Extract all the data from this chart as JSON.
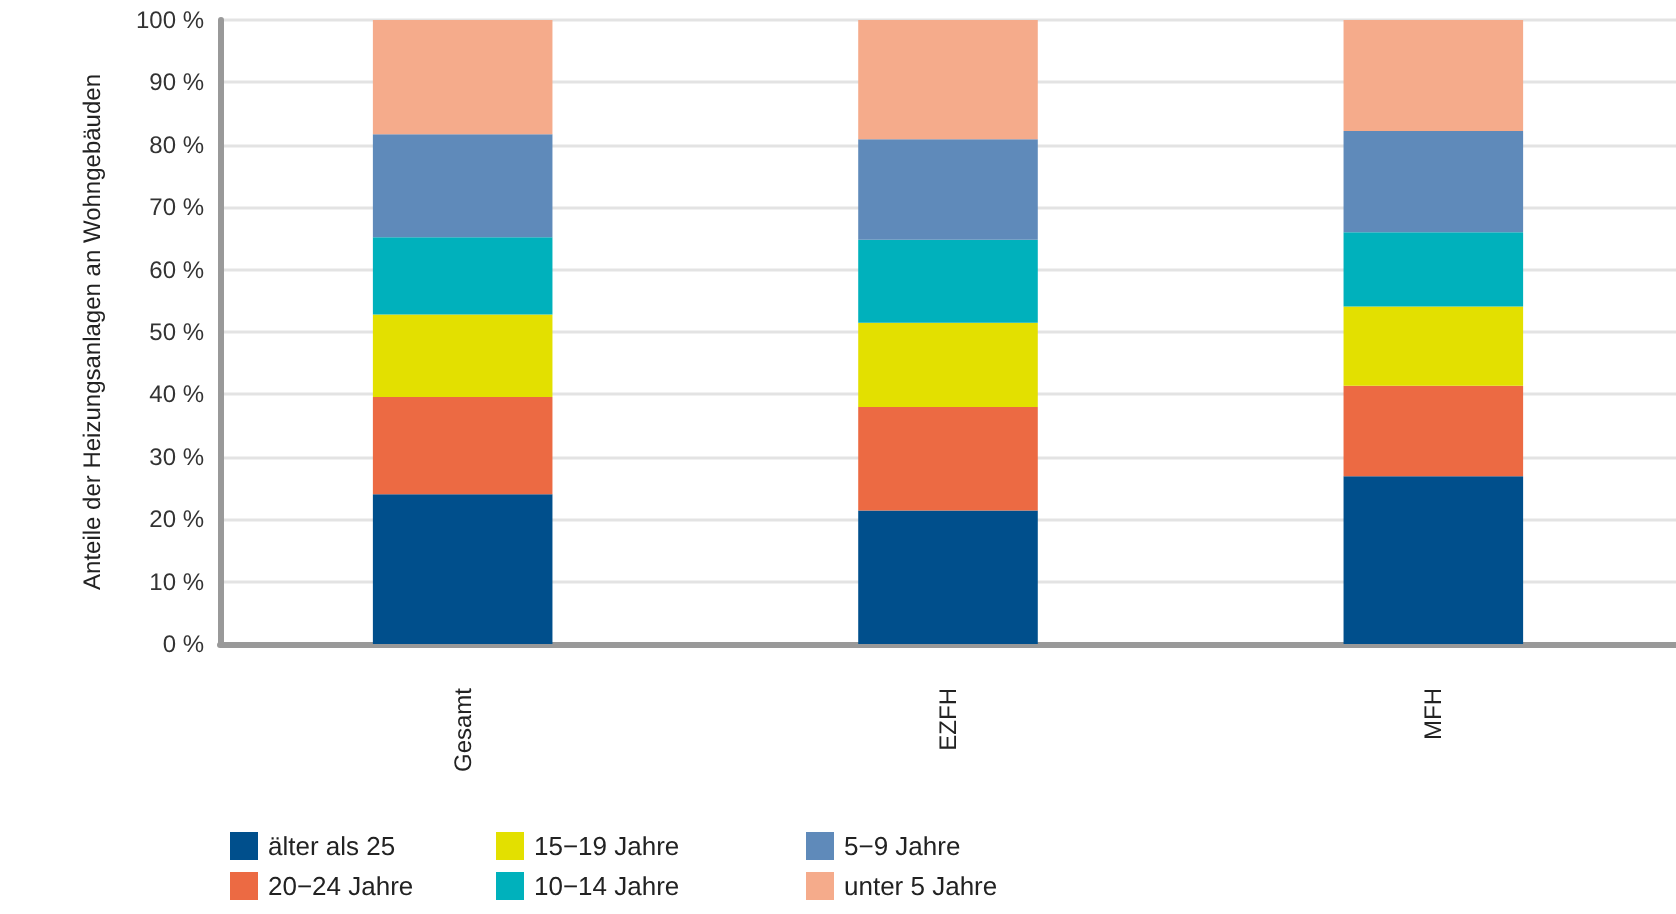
{
  "chart_data": {
    "type": "bar",
    "stacked": true,
    "ylabel": "Anteile der Heizungsanlagen an Wohngebäuden",
    "categories": [
      "Gesamt",
      "EZFH",
      "MFH"
    ],
    "series": [
      {
        "name": "älter als 25",
        "color": "#004f8c",
        "values": [
          24,
          21.4,
          26.9
        ]
      },
      {
        "name": "20−24 Jahre",
        "color": "#ec6a43",
        "values": [
          15.6,
          16.6,
          14.5
        ]
      },
      {
        "name": "15−19 Jahre",
        "color": "#e3e000",
        "values": [
          13.2,
          13.5,
          12.7
        ]
      },
      {
        "name": "10−14 Jahre",
        "color": "#00b1bc",
        "values": [
          12.4,
          13.3,
          11.9
        ]
      },
      {
        "name": "5−9 Jahre",
        "color": "#5f8aba",
        "values": [
          16.5,
          16.1,
          16.2
        ]
      },
      {
        "name": "unter 5 Jahre",
        "color": "#f5ab8b",
        "values": [
          18.3,
          19.1,
          17.8
        ]
      }
    ],
    "ylim": [
      0,
      100
    ],
    "yticks": [
      {
        "value": 0,
        "label": "0 %"
      },
      {
        "value": 10,
        "label": "10 %"
      },
      {
        "value": 20,
        "label": "20 %"
      },
      {
        "value": 30,
        "label": "30 %"
      },
      {
        "value": 40,
        "label": "40 %"
      },
      {
        "value": 50,
        "label": "50 %"
      },
      {
        "value": 60,
        "label": "60 %"
      },
      {
        "value": 70,
        "label": "70 %"
      },
      {
        "value": 80,
        "label": "80 %"
      },
      {
        "value": 90,
        "label": "90 %"
      },
      {
        "value": 100,
        "label": "100 %"
      }
    ],
    "grid": true,
    "legend": "bottom left"
  }
}
